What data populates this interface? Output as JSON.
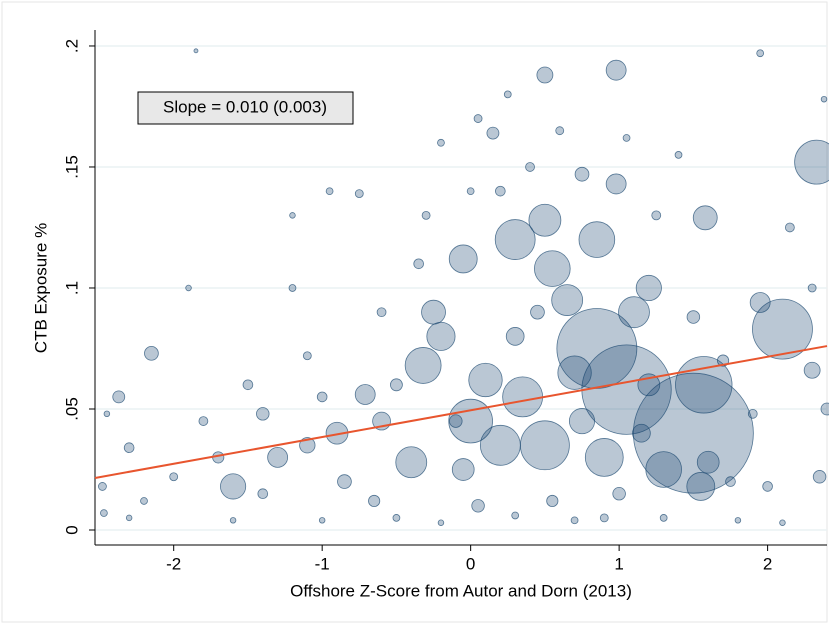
{
  "chart_data": {
    "type": "scatter",
    "annotation": "Slope = 0.010 (0.003)",
    "x_label": "Offshore Z-Score from Autor and Dorn (2013)",
    "y_label": "CTB Exposure %",
    "color": "#1a476f",
    "grid": true,
    "xlim": [
      -2.53,
      2.4
    ],
    "ylim": [
      -0.0062,
      0.2066
    ],
    "xticks": [
      -2,
      -1,
      0,
      1,
      2
    ],
    "yticks": [
      0,
      {
        "value": 0.05,
        "label": ".05"
      },
      {
        "value": 0.1,
        "label": ".1"
      },
      {
        "value": 0.15,
        "label": ".15"
      },
      {
        "value": 0.2,
        "label": ".2"
      }
    ],
    "x": [
      2.33,
      2.1,
      1.5,
      1.05,
      0.85,
      1.57,
      0.55,
      0.3,
      0.85,
      0.98,
      0.5,
      0.5,
      -0.05,
      1.58,
      0.98,
      -2.15,
      -2.37,
      -0.71,
      -0.32,
      0.2,
      0.5,
      1.3,
      1.55,
      0.0,
      0.35,
      -0.4,
      1.1,
      0.7,
      -1.6,
      -0.2,
      0.9,
      1.2,
      2.3,
      2.4,
      1.95,
      -0.25,
      0.65,
      0.1,
      -0.9,
      -1.3,
      -2.48,
      -2.47,
      -2.3,
      -2.2,
      -2.0,
      -1.85,
      -1.8,
      -1.7,
      -1.5,
      -1.4,
      -1.2,
      -1.1,
      -1.0,
      -0.95,
      -0.85,
      -0.75,
      -0.6,
      -0.5,
      -0.5,
      -0.3,
      -0.2,
      -0.1,
      0.05,
      0.15,
      0.2,
      0.25,
      0.4,
      0.45,
      0.6,
      0.75,
      0.9,
      1.05,
      1.15,
      1.25,
      1.4,
      1.5,
      1.7,
      1.75,
      1.9,
      1.95,
      2.0,
      2.15,
      2.3,
      2.35,
      2.38,
      -2.3,
      -1.6,
      -1.0,
      -0.2,
      0.3,
      0.7,
      1.3,
      1.8,
      2.1,
      -1.4,
      -0.65,
      0.05,
      0.55,
      1.0,
      -2.45,
      -1.9,
      -1.2,
      -0.35,
      0.0,
      1.2,
      1.6,
      0.75,
      -0.05,
      0.3,
      -0.6,
      -1.1
    ],
    "values": [
      0.152,
      0.083,
      0.04,
      0.058,
      0.075,
      0.06,
      0.108,
      0.12,
      0.12,
      0.19,
      0.188,
      0.128,
      0.112,
      0.129,
      0.143,
      0.073,
      0.055,
      0.056,
      0.068,
      0.035,
      0.035,
      0.025,
      0.018,
      0.045,
      0.055,
      0.028,
      0.09,
      0.065,
      0.018,
      0.08,
      0.03,
      0.1,
      0.066,
      0.05,
      0.094,
      0.09,
      0.095,
      0.062,
      0.04,
      0.03,
      0.018,
      0.007,
      0.034,
      0.012,
      0.022,
      0.198,
      0.045,
      0.03,
      0.06,
      0.048,
      0.13,
      0.072,
      0.055,
      0.14,
      0.02,
      0.139,
      0.09,
      0.06,
      0.005,
      0.13,
      0.16,
      0.045,
      0.17,
      0.164,
      0.14,
      0.18,
      0.15,
      0.09,
      0.165,
      0.147,
      0.005,
      0.162,
      0.04,
      0.13,
      0.155,
      0.088,
      0.07,
      0.02,
      0.048,
      0.197,
      0.018,
      0.125,
      0.1,
      0.022,
      0.178,
      0.005,
      0.004,
      0.004,
      0.003,
      0.006,
      0.004,
      0.005,
      0.004,
      0.003,
      0.015,
      0.012,
      0.01,
      0.012,
      0.015,
      0.048,
      0.1,
      0.1,
      0.11,
      0.14,
      0.06,
      0.028,
      0.045,
      0.025,
      0.08,
      0.045,
      0.035
    ],
    "sizes": [
      121,
      225,
      900,
      500,
      400,
      200,
      80,
      100,
      80,
      25,
      16,
      64,
      49,
      36,
      25,
      12,
      9,
      25,
      81,
      100,
      150,
      80,
      49,
      120,
      100,
      60,
      60,
      70,
      40,
      50,
      90,
      40,
      16,
      9,
      25,
      36,
      60,
      70,
      30,
      25,
      4,
      3,
      6,
      3,
      4,
      1,
      5,
      8,
      6,
      10,
      2,
      4,
      6,
      3,
      12,
      4,
      5,
      9,
      3,
      4,
      3,
      10,
      4,
      9,
      6,
      3,
      5,
      12,
      4,
      12,
      4,
      3,
      20,
      5,
      3,
      10,
      8,
      6,
      5,
      3,
      6,
      5,
      4,
      10,
      2,
      2,
      2,
      2,
      2,
      3,
      3,
      3,
      2,
      2,
      6,
      8,
      10,
      8,
      10,
      2,
      2,
      3,
      6,
      3,
      30,
      30,
      40,
      30,
      20,
      20,
      15
    ],
    "fit_line": {
      "color": "#e8552e",
      "x": [
        -2.53,
        2.4
      ],
      "values": [
        0.0215,
        0.076
      ]
    }
  }
}
